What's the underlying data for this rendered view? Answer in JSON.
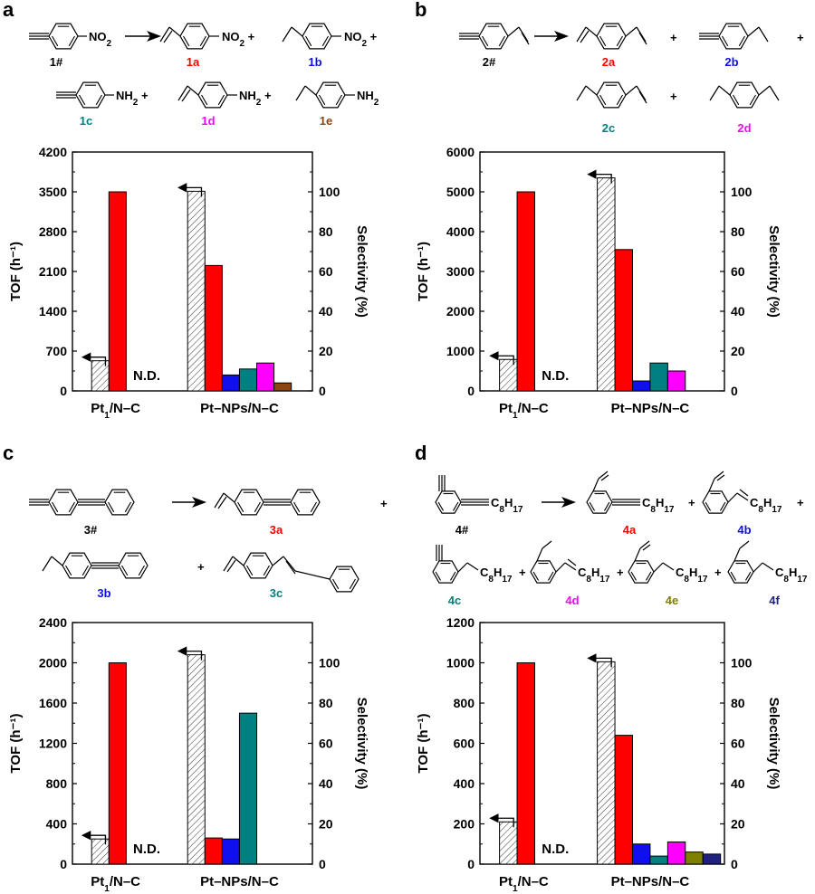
{
  "colors": {
    "1a": "#ff0000",
    "1b": "#1010ee",
    "1c": "#008080",
    "1d": "#ff00ff",
    "1e": "#8b4513",
    "2a": "#ff0000",
    "2b": "#1010ee",
    "2c": "#008080",
    "2d": "#ff00ff",
    "3a": "#ff0000",
    "3b": "#1010ee",
    "3c": "#008080",
    "4a": "#ff0000",
    "4b": "#1010ee",
    "4c": "#008080",
    "4d": "#ff00ff",
    "4e": "#808000",
    "4f": "#202080",
    "text_dark": "#000000"
  },
  "chart_data": [
    {
      "panel": "a",
      "type": "bar",
      "scheme": {
        "reactant": "1#",
        "reactant_group": "NO₂",
        "products": [
          {
            "id": "1a",
            "group": "NO₂"
          },
          {
            "id": "1b",
            "group": "NO₂"
          },
          {
            "id": "1c",
            "group": "NH₂"
          },
          {
            "id": "1d",
            "group": "NH₂"
          },
          {
            "id": "1e",
            "group": "NH₂"
          }
        ]
      },
      "categories": [
        "Pt₁/N–C",
        "Pt–NPs/N–C"
      ],
      "tof": [
        530,
        3510
      ],
      "selectivity": [
        {
          "name": "1a",
          "values": [
            100,
            63
          ]
        },
        {
          "name": "1b",
          "values": [
            null,
            8
          ]
        },
        {
          "name": "1c",
          "values": [
            null,
            11
          ]
        },
        {
          "name": "1d",
          "values": [
            null,
            14
          ]
        },
        {
          "name": "1e",
          "values": [
            null,
            4
          ]
        }
      ],
      "nd_label": "N.D.",
      "ylabel_left": "TOF (h⁻¹)",
      "ylim_left": [
        0,
        4200
      ],
      "yticks_left": [
        "0",
        "700",
        "1400",
        "2100",
        "2800",
        "3500",
        "4200"
      ],
      "ylabel_right": "Selectivity (%)",
      "ylim_right": [
        0,
        120
      ],
      "yticks_right": [
        "0",
        "20",
        "40",
        "60",
        "80",
        "100"
      ]
    },
    {
      "panel": "b",
      "type": "bar",
      "scheme": {
        "reactant": "2#",
        "products": [
          {
            "id": "2a"
          },
          {
            "id": "2b"
          },
          {
            "id": "2c"
          },
          {
            "id": "2d"
          }
        ]
      },
      "categories": [
        "Pt₁/N–C",
        "Pt–NPs/N–C"
      ],
      "tof": [
        790,
        5350
      ],
      "selectivity": [
        {
          "name": "2a",
          "values": [
            100,
            71
          ]
        },
        {
          "name": "2b",
          "values": [
            null,
            5
          ]
        },
        {
          "name": "2c",
          "values": [
            null,
            14
          ]
        },
        {
          "name": "2d",
          "values": [
            null,
            10
          ]
        }
      ],
      "nd_label": "N.D.",
      "ylabel_left": "TOF (h⁻¹)",
      "ylim_left": [
        0,
        6000
      ],
      "yticks_left": [
        "0",
        "1000",
        "2000",
        "3000",
        "4000",
        "5000",
        "6000"
      ],
      "ylabel_right": "Selectivity (%)",
      "ylim_right": [
        0,
        120
      ],
      "yticks_right": [
        "0",
        "20",
        "40",
        "60",
        "80",
        "100"
      ]
    },
    {
      "panel": "c",
      "type": "bar",
      "scheme": {
        "reactant": "3#",
        "products": [
          {
            "id": "3a"
          },
          {
            "id": "3b"
          },
          {
            "id": "3c"
          }
        ]
      },
      "categories": [
        "Pt₁/N–C",
        "Pt–NPs/N–C"
      ],
      "tof": [
        250,
        2080
      ],
      "selectivity": [
        {
          "name": "3a",
          "values": [
            100,
            13
          ]
        },
        {
          "name": "3b",
          "values": [
            null,
            12.5
          ]
        },
        {
          "name": "3c",
          "values": [
            null,
            75
          ]
        }
      ],
      "nd_label": "N.D.",
      "ylabel_left": "TOF (h⁻¹)",
      "ylim_left": [
        0,
        2400
      ],
      "yticks_left": [
        "0",
        "400",
        "800",
        "1200",
        "1600",
        "2000",
        "2400"
      ],
      "ylabel_right": "Selectivity (%)",
      "ylim_right": [
        0,
        120
      ],
      "yticks_right": [
        "0",
        "20",
        "40",
        "60",
        "80",
        "100"
      ]
    },
    {
      "panel": "d",
      "type": "bar",
      "scheme": {
        "reactant": "4#",
        "chain": "C₈H₁₇",
        "products": [
          {
            "id": "4a"
          },
          {
            "id": "4b"
          },
          {
            "id": "4c"
          },
          {
            "id": "4d"
          },
          {
            "id": "4e"
          },
          {
            "id": "4f"
          }
        ]
      },
      "categories": [
        "Pt₁/N–C",
        "Pt–NPs/N–C"
      ],
      "tof": [
        210,
        1005
      ],
      "selectivity": [
        {
          "name": "4a",
          "values": [
            100,
            64
          ]
        },
        {
          "name": "4b",
          "values": [
            null,
            10
          ]
        },
        {
          "name": "4c",
          "values": [
            null,
            4
          ]
        },
        {
          "name": "4d",
          "values": [
            null,
            11
          ]
        },
        {
          "name": "4e",
          "values": [
            null,
            6
          ]
        },
        {
          "name": "4f",
          "values": [
            null,
            5
          ]
        }
      ],
      "nd_label": "N.D.",
      "ylabel_left": "TOF (h⁻¹)",
      "ylim_left": [
        0,
        1200
      ],
      "yticks_left": [
        "0",
        "200",
        "400",
        "600",
        "800",
        "1000",
        "1200"
      ],
      "ylabel_right": "Selectivity (%)",
      "ylim_right": [
        0,
        120
      ],
      "yticks_right": [
        "0",
        "20",
        "40",
        "60",
        "80",
        "100"
      ]
    }
  ]
}
